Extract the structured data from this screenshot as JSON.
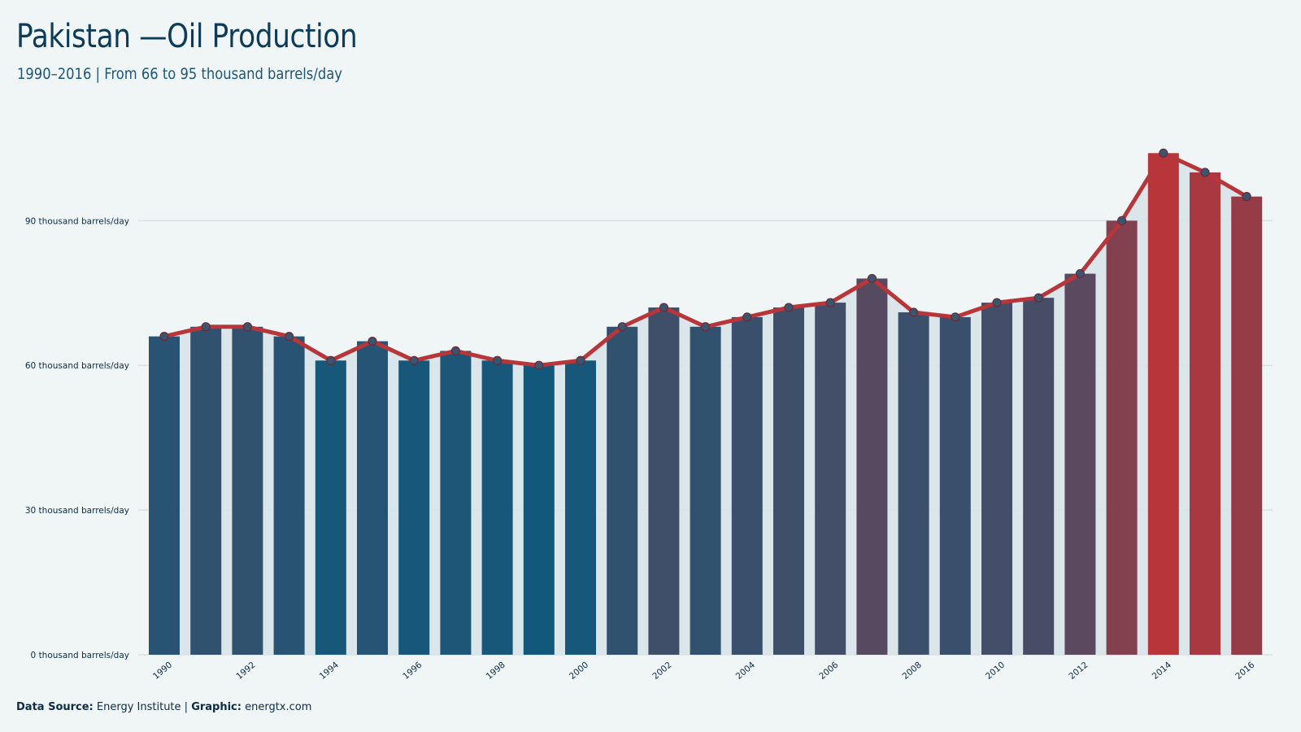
{
  "header": {
    "title": "Pakistan —Oil Production",
    "subtitle": "1990–2016 | From 66 to 95 thousand barrels/day"
  },
  "footer": {
    "source_label": "Data Source:",
    "source_value": " Energy Institute | ",
    "graphic_label": "Graphic:",
    "graphic_value": " energtx.com"
  },
  "colors": {
    "low": "#12587b",
    "high": "#b8353a",
    "line": "#b8353a",
    "area": "#d7e4e8",
    "grid": "#d4e2e4",
    "marker_fill": "#3a5570"
  },
  "chart_data": {
    "type": "bar",
    "title": "Pakistan —Oil Production",
    "subtitle": "1990–2016 | From 66 to 95 thousand barrels/day",
    "xlabel": "",
    "ylabel": "",
    "categories": [
      "1990",
      "1991",
      "1992",
      "1993",
      "1994",
      "1995",
      "1996",
      "1997",
      "1998",
      "1999",
      "2000",
      "2001",
      "2002",
      "2003",
      "2004",
      "2005",
      "2006",
      "2007",
      "2008",
      "2009",
      "2010",
      "2011",
      "2012",
      "2013",
      "2014",
      "2015",
      "2016"
    ],
    "values": [
      66,
      68,
      68,
      66,
      61,
      65,
      61,
      63,
      61,
      60,
      61,
      68,
      72,
      68,
      70,
      72,
      73,
      78,
      71,
      70,
      73,
      74,
      79,
      90,
      104,
      100,
      95
    ],
    "x_tick_labels": [
      "1990",
      "1992",
      "1994",
      "1996",
      "1998",
      "2000",
      "2002",
      "2004",
      "2006",
      "2008",
      "2010",
      "2012",
      "2014",
      "2016"
    ],
    "y_ticks": [
      0,
      30,
      60,
      90
    ],
    "y_tick_labels": [
      "0 thousand barrels/day",
      "30 thousand barrels/day",
      "60 thousand barrels/day",
      "90 thousand barrels/day"
    ],
    "ylim": [
      0,
      110
    ],
    "grid": true,
    "overlay": "line-with-markers"
  }
}
